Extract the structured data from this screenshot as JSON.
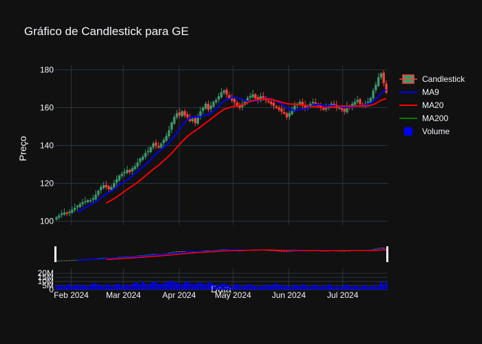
{
  "chart_data": {
    "type": "candlestick",
    "title": "Gráfico de Candlestick para GE",
    "ylabel": "Preço",
    "xlabel": "Data",
    "ylim": [
      98,
      182
    ],
    "volume_ylim": [
      0,
      26000000
    ],
    "x_ticks": [
      "Feb 2024",
      "Mar 2024",
      "Apr 2024",
      "May 2024",
      "Jun 2024",
      "Jul 2024"
    ],
    "y_ticks": [
      100,
      120,
      140,
      160,
      180
    ],
    "volume_ticks": [
      "0",
      "5M",
      "10M",
      "15M",
      "20M"
    ],
    "volume_tick_values": [
      0,
      5000000,
      10000000,
      15000000,
      20000000
    ],
    "legend": [
      "Candlestick",
      "MA9",
      "MA20",
      "MA200",
      "Volume"
    ],
    "date_range": [
      "2024-01-23",
      "2024-07-26"
    ],
    "close": [
      102,
      103,
      104,
      104.5,
      104,
      105,
      106,
      107,
      108,
      109,
      110,
      110.5,
      111,
      111,
      112,
      114,
      116,
      118,
      119,
      118,
      117,
      118,
      120,
      122,
      124,
      125,
      126,
      127,
      126,
      128,
      129,
      131,
      133,
      134,
      136,
      137,
      139,
      141,
      140,
      139,
      141,
      143,
      145,
      148,
      152,
      155,
      157,
      156,
      158,
      156,
      155,
      153,
      154,
      152,
      155,
      158,
      160,
      162,
      159,
      161,
      163,
      164,
      166,
      168,
      169,
      167,
      165,
      164,
      163,
      161,
      160,
      162,
      163,
      165,
      166,
      167,
      165,
      164,
      166,
      165,
      164,
      163,
      162,
      161,
      160,
      159,
      158,
      157,
      155,
      157,
      159,
      161,
      162,
      163,
      161,
      160,
      161,
      162,
      163,
      162,
      161,
      160,
      159,
      160,
      161,
      162,
      161,
      160,
      160,
      159,
      158,
      161,
      160,
      162,
      163,
      164,
      162,
      161,
      162,
      163,
      165,
      169,
      172,
      176,
      178,
      173,
      168
    ],
    "volume": [
      5,
      4.5,
      6,
      4,
      5.5,
      7,
      4.2,
      5,
      6.5,
      5.2,
      4.8,
      5.5,
      4,
      6,
      7.5,
      8,
      6.5,
      5,
      4.5,
      5.8,
      6.2,
      4.1,
      5,
      6.8,
      7.2,
      5.5,
      4.9,
      6.1,
      5,
      7,
      8.5,
      9,
      6.5,
      10,
      7.5,
      6,
      8,
      9.5,
      10.5,
      7,
      6.5,
      8,
      9,
      10,
      11,
      9.5,
      8,
      7.5,
      6.5,
      9,
      10.5,
      8,
      7,
      6.5,
      9,
      8.5,
      7,
      6,
      10,
      8,
      7,
      6,
      5.5,
      7.5,
      8,
      6.5,
      5,
      4.5,
      6,
      7,
      5.5,
      4,
      5,
      6.5,
      7,
      5,
      4.5,
      3.5,
      5,
      4,
      6,
      5.5,
      4.5,
      6.5,
      7.5,
      5,
      6,
      4,
      5.5,
      3.5,
      4.5,
      6,
      5,
      4,
      7,
      5.5,
      4.5,
      3.5,
      5,
      6,
      4.5,
      3,
      5.5,
      4,
      6.5,
      5,
      3.5,
      4.5,
      3,
      4,
      5.5,
      6,
      4.5,
      3.5,
      5,
      4,
      3,
      4.5,
      5.5,
      4,
      3.5,
      4.5,
      5,
      4,
      10,
      6,
      9.5
    ]
  },
  "colors": {
    "background": "#111111",
    "grid": "#283442",
    "increasing": "#3d9970",
    "decreasing": "#ff4136",
    "ma9": "#0000ff",
    "ma20": "#ff0000",
    "ma200": "#008000",
    "volume": "#0000ff"
  }
}
